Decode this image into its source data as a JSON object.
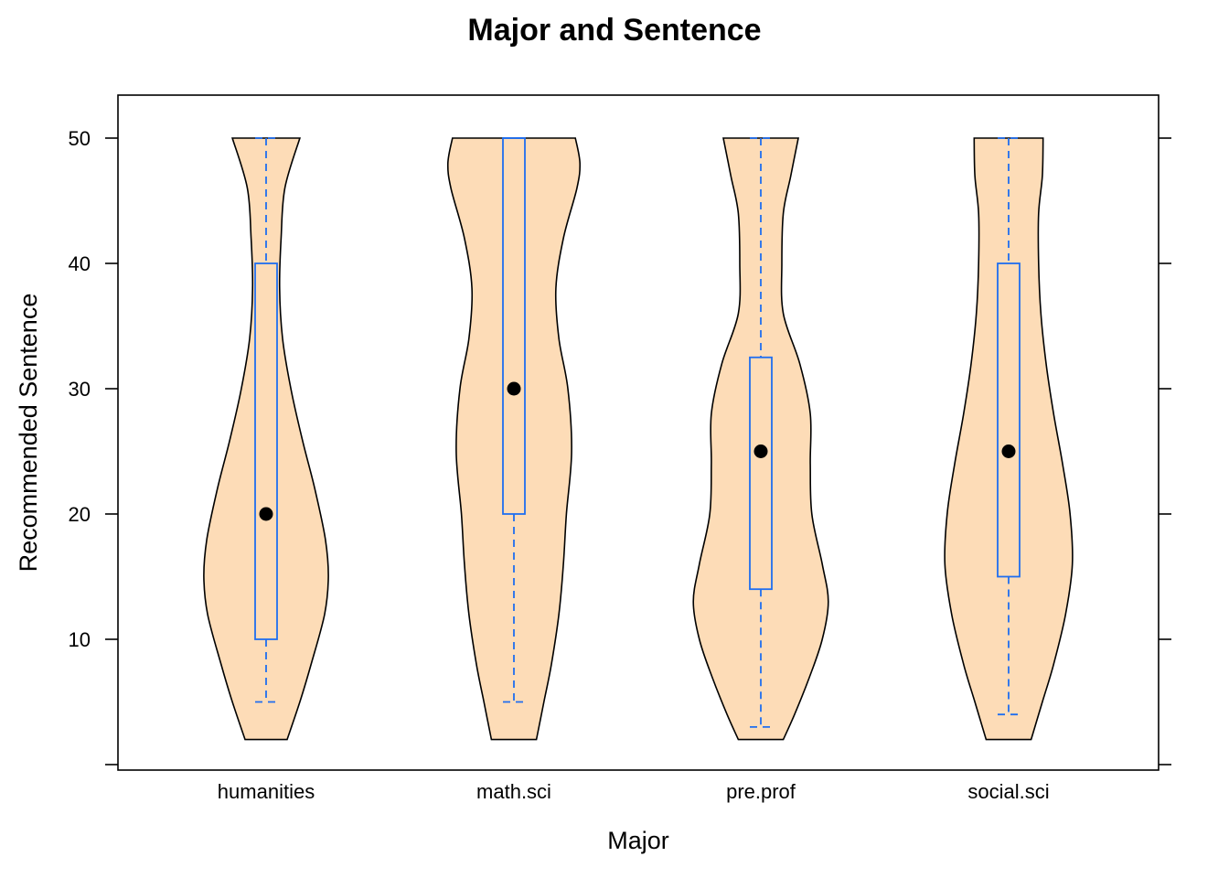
{
  "chart_data": {
    "type": "violin",
    "title": "Major and Sentence",
    "xlabel": "Major",
    "ylabel": "Recommended Sentence",
    "categories": [
      "humanities",
      "math.sci",
      "pre.prof",
      "social.sci"
    ],
    "ylim": [
      0,
      53
    ],
    "yticks": [
      10,
      20,
      30,
      40,
      50
    ],
    "y_axis_bottom_tick": 0,
    "grid": false,
    "colors": {
      "violin_fill": "#fddcb7",
      "box": "#1f6ef0",
      "median_dot": "#000000"
    },
    "boxes": [
      {
        "category": "humanities",
        "whisker_low": 5,
        "q1": 10,
        "median": 20,
        "q3": 40,
        "whisker_high": 50
      },
      {
        "category": "math.sci",
        "whisker_low": 5,
        "q1": 20,
        "median": 30,
        "q3": 50,
        "whisker_high": 50
      },
      {
        "category": "pre.prof",
        "whisker_low": 3,
        "q1": 14,
        "median": 25,
        "q3": 32.5,
        "whisker_high": 50
      },
      {
        "category": "social.sci",
        "whisker_low": 4,
        "q1": 15,
        "median": 25,
        "q3": 40,
        "whisker_high": 50
      }
    ],
    "density_profiles": [
      {
        "category": "humanities",
        "y_min": 2,
        "y_max": 50,
        "profile": [
          [
            2,
            0.28
          ],
          [
            5,
            0.45
          ],
          [
            8,
            0.6
          ],
          [
            12,
            0.78
          ],
          [
            15,
            0.83
          ],
          [
            18,
            0.79
          ],
          [
            22,
            0.65
          ],
          [
            26,
            0.48
          ],
          [
            30,
            0.33
          ],
          [
            34,
            0.22
          ],
          [
            38,
            0.18
          ],
          [
            42,
            0.2
          ],
          [
            46,
            0.25
          ],
          [
            50,
            0.45
          ]
        ]
      },
      {
        "category": "math.sci",
        "y_min": 2,
        "y_max": 50,
        "profile": [
          [
            2,
            0.3
          ],
          [
            5,
            0.4
          ],
          [
            8,
            0.5
          ],
          [
            12,
            0.6
          ],
          [
            16,
            0.66
          ],
          [
            20,
            0.7
          ],
          [
            25,
            0.77
          ],
          [
            30,
            0.72
          ],
          [
            34,
            0.6
          ],
          [
            38,
            0.56
          ],
          [
            42,
            0.66
          ],
          [
            46,
            0.84
          ],
          [
            48,
            0.88
          ],
          [
            50,
            0.82
          ]
        ]
      },
      {
        "category": "pre.prof",
        "y_min": 2,
        "y_max": 50,
        "profile": [
          [
            2,
            0.3
          ],
          [
            4,
            0.45
          ],
          [
            7,
            0.65
          ],
          [
            10,
            0.82
          ],
          [
            13,
            0.9
          ],
          [
            16,
            0.82
          ],
          [
            20,
            0.68
          ],
          [
            24,
            0.66
          ],
          [
            28,
            0.66
          ],
          [
            32,
            0.52
          ],
          [
            36,
            0.3
          ],
          [
            40,
            0.28
          ],
          [
            44,
            0.3
          ],
          [
            47,
            0.4
          ],
          [
            50,
            0.5
          ]
        ]
      },
      {
        "category": "social.sci",
        "y_min": 2,
        "y_max": 50,
        "profile": [
          [
            2,
            0.3
          ],
          [
            5,
            0.45
          ],
          [
            8,
            0.6
          ],
          [
            12,
            0.76
          ],
          [
            16,
            0.85
          ],
          [
            20,
            0.82
          ],
          [
            24,
            0.72
          ],
          [
            28,
            0.6
          ],
          [
            32,
            0.5
          ],
          [
            36,
            0.43
          ],
          [
            40,
            0.4
          ],
          [
            44,
            0.4
          ],
          [
            47,
            0.45
          ],
          [
            50,
            0.46
          ]
        ]
      }
    ]
  }
}
